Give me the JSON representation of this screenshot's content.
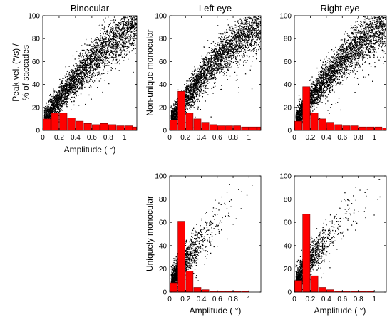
{
  "figure": {
    "xlabel": "Amplitude ( °)",
    "row_labels": [
      "Peak vel. (°/s) /\n% of saccades",
      "Non-unique monocular",
      "Uniquely monocular"
    ]
  },
  "chart_data": [
    {
      "id": "binocular",
      "type": "scatter",
      "title": "Binocular",
      "xlabel": "Amplitude ( °)",
      "ylabel": "Peak vel. (°/s) / % of saccades",
      "xlim": [
        0,
        1.15
      ],
      "ylim": [
        0,
        100
      ],
      "xticks": [
        "0",
        "0.2",
        "0.4",
        "0.6",
        "0.8",
        "1"
      ],
      "yticks": [
        "0",
        "20",
        "40",
        "60",
        "80",
        "100"
      ],
      "grid": false,
      "scatter": {
        "n_points": 3200,
        "trend": [
          [
            0.03,
            8
          ],
          [
            0.1,
            17
          ],
          [
            0.2,
            26
          ],
          [
            0.4,
            45
          ],
          [
            0.6,
            61
          ],
          [
            0.8,
            75
          ],
          [
            1.0,
            85
          ],
          [
            1.13,
            93
          ]
        ],
        "spread": 9
      },
      "histogram": {
        "bin_width": 0.1,
        "bin_starts": [
          0.0,
          0.1,
          0.2,
          0.3,
          0.4,
          0.5,
          0.6,
          0.7,
          0.8,
          0.9,
          1.0,
          1.1
        ],
        "values": [
          10,
          15,
          15,
          11,
          8,
          6,
          5,
          6,
          5,
          4,
          4,
          3
        ]
      }
    },
    {
      "id": "left-nonunique",
      "type": "scatter",
      "title": "Left eye",
      "xlabel": "",
      "ylabel": "Non-unique monocular",
      "xlim": [
        0,
        1.15
      ],
      "ylim": [
        0,
        100
      ],
      "xticks": [
        "0",
        "0.2",
        "0.4",
        "0.6",
        "0.8",
        "1"
      ],
      "yticks": [
        "0",
        "20",
        "40",
        "60",
        "80",
        "100"
      ],
      "grid": false,
      "scatter": {
        "n_points": 3400,
        "trend": [
          [
            0.03,
            8
          ],
          [
            0.1,
            17
          ],
          [
            0.2,
            27
          ],
          [
            0.4,
            46
          ],
          [
            0.6,
            62
          ],
          [
            0.8,
            75
          ],
          [
            1.0,
            86
          ],
          [
            1.13,
            93
          ]
        ],
        "spread": 9
      },
      "histogram": {
        "bin_width": 0.1,
        "bin_starts": [
          0.0,
          0.1,
          0.2,
          0.3,
          0.4,
          0.5,
          0.6,
          0.7,
          0.8,
          0.9,
          1.0,
          1.1
        ],
        "values": [
          9,
          34,
          15,
          10,
          7,
          5,
          4,
          4,
          4,
          3,
          3,
          3
        ]
      }
    },
    {
      "id": "right-nonunique",
      "type": "scatter",
      "title": "Right eye",
      "xlabel": "",
      "ylabel": "",
      "xlim": [
        0,
        1.15
      ],
      "ylim": [
        0,
        100
      ],
      "xticks": [
        "0",
        "0.2",
        "0.4",
        "0.6",
        "0.8",
        "1"
      ],
      "yticks": [
        "0",
        "20",
        "40",
        "60",
        "80",
        "100"
      ],
      "grid": false,
      "scatter": {
        "n_points": 3400,
        "trend": [
          [
            0.03,
            8
          ],
          [
            0.1,
            17
          ],
          [
            0.2,
            27
          ],
          [
            0.4,
            46
          ],
          [
            0.6,
            62
          ],
          [
            0.8,
            75
          ],
          [
            1.0,
            86
          ],
          [
            1.13,
            93
          ]
        ],
        "spread": 9
      },
      "histogram": {
        "bin_width": 0.1,
        "bin_starts": [
          0.0,
          0.1,
          0.2,
          0.3,
          0.4,
          0.5,
          0.6,
          0.7,
          0.8,
          0.9,
          1.0,
          1.1
        ],
        "values": [
          8,
          38,
          15,
          10,
          7,
          5,
          4,
          4,
          3,
          3,
          3,
          2
        ]
      }
    },
    {
      "id": "left-unique",
      "type": "scatter",
      "title": "",
      "xlabel": "Amplitude ( °)",
      "ylabel": "Uniquely monocular",
      "xlim": [
        0,
        1.15
      ],
      "ylim": [
        0,
        100
      ],
      "xticks": [
        "0",
        "0.2",
        "0.4",
        "0.6",
        "0.8",
        "1"
      ],
      "yticks": [
        "0",
        "20",
        "40",
        "60",
        "80",
        "100"
      ],
      "grid": false,
      "scatter": {
        "n_points": 1500,
        "trend": [
          [
            0.03,
            8
          ],
          [
            0.1,
            17
          ],
          [
            0.2,
            27
          ],
          [
            0.4,
            45
          ],
          [
            0.6,
            60
          ],
          [
            0.8,
            73
          ],
          [
            1.0,
            84
          ],
          [
            1.13,
            90
          ]
        ],
        "spread": 10,
        "decay": 0.16
      },
      "histogram": {
        "bin_width": 0.1,
        "bin_starts": [
          0.0,
          0.1,
          0.2,
          0.3,
          0.4,
          0.5,
          0.6,
          0.7,
          0.8,
          0.9,
          1.0,
          1.1
        ],
        "values": [
          8,
          61,
          18,
          4,
          2,
          1,
          1,
          1,
          1,
          1,
          0,
          0
        ]
      }
    },
    {
      "id": "right-unique",
      "type": "scatter",
      "title": "",
      "xlabel": "Amplitude ( °)",
      "ylabel": "",
      "xlim": [
        0,
        1.15
      ],
      "ylim": [
        0,
        100
      ],
      "xticks": [
        "0",
        "0.2",
        "0.4",
        "0.6",
        "0.8",
        "1"
      ],
      "yticks": [
        "0",
        "20",
        "40",
        "60",
        "80",
        "100"
      ],
      "grid": false,
      "scatter": {
        "n_points": 1500,
        "trend": [
          [
            0.03,
            8
          ],
          [
            0.1,
            17
          ],
          [
            0.2,
            27
          ],
          [
            0.4,
            45
          ],
          [
            0.6,
            60
          ],
          [
            0.8,
            73
          ],
          [
            1.0,
            84
          ],
          [
            1.13,
            90
          ]
        ],
        "spread": 10,
        "decay": 0.16
      },
      "histogram": {
        "bin_width": 0.1,
        "bin_starts": [
          0.0,
          0.1,
          0.2,
          0.3,
          0.4,
          0.5,
          0.6,
          0.7,
          0.8,
          0.9,
          1.0,
          1.1
        ],
        "values": [
          10,
          67,
          14,
          4,
          2,
          1,
          1,
          1,
          1,
          1,
          0,
          0
        ]
      }
    }
  ],
  "colors": {
    "points": "#000000",
    "bars": "#ff0000",
    "bar_edge": "#7f0000",
    "axes": "#000000"
  }
}
